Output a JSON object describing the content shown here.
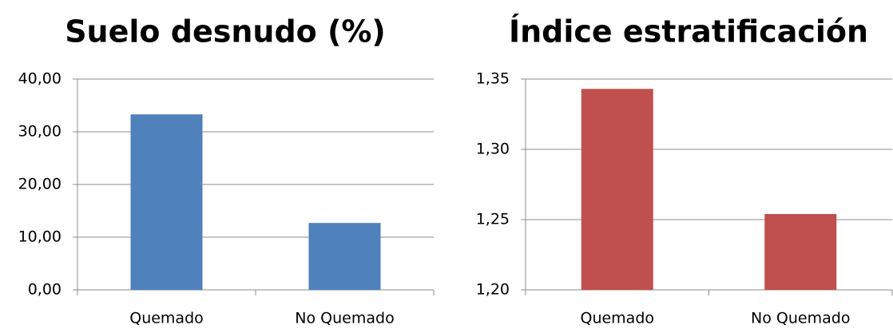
{
  "chart_data": [
    {
      "type": "bar",
      "title": "Suelo desnudo (%)",
      "categories": [
        "Quemado",
        "No Quemado"
      ],
      "values": [
        33.3,
        12.7
      ],
      "color": "#4f81bd",
      "ylim": [
        0,
        40
      ],
      "yticks": [
        {
          "value": 0,
          "label": "0,00"
        },
        {
          "value": 10,
          "label": "10,00"
        },
        {
          "value": 20,
          "label": "20,00"
        },
        {
          "value": 30,
          "label": "30,00"
        },
        {
          "value": 40,
          "label": "40,00"
        }
      ],
      "grid": true
    },
    {
      "type": "bar",
      "title": "Índice estratificación",
      "categories": [
        "Quemado",
        "No Quemado"
      ],
      "values": [
        1.343,
        1.254
      ],
      "color": "#c0504d",
      "ylim": [
        1.2,
        1.35
      ],
      "yticks": [
        {
          "value": 1.2,
          "label": "1,20"
        },
        {
          "value": 1.25,
          "label": "1,25"
        },
        {
          "value": 1.3,
          "label": "1,30"
        },
        {
          "value": 1.35,
          "label": "1,35"
        }
      ],
      "grid": true
    }
  ]
}
